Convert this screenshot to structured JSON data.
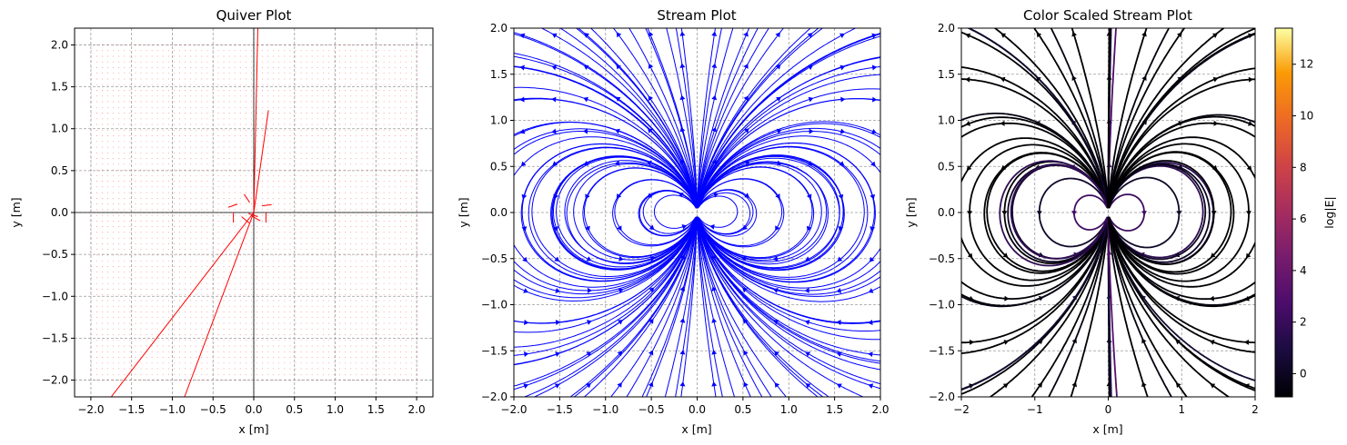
{
  "chart_data": [
    {
      "type": "quiver",
      "title": "Quiver Plot",
      "xlabel": "x [m]",
      "ylabel": "y [m]",
      "xlim": [
        -2.2,
        2.2
      ],
      "ylim": [
        -2.2,
        2.2
      ],
      "xticks": [
        -2.0,
        -1.5,
        -1.0,
        -0.5,
        0.0,
        0.5,
        1.0,
        1.5,
        2.0
      ],
      "yticks": [
        -2.0,
        -1.5,
        -1.0,
        -0.5,
        0.0,
        0.5,
        1.0,
        1.5,
        2.0
      ],
      "xtick_labels": [
        "−2.0",
        "−1.5",
        "−1.0",
        "−0.5",
        "0.0",
        "0.5",
        "1.0",
        "1.5",
        "2.0"
      ],
      "ytick_labels": [
        "−2.0",
        "−1.5",
        "−1.0",
        "−0.5",
        "0.0",
        "0.5",
        "1.0",
        "1.5",
        "2.0"
      ],
      "grid": true,
      "arrow_color": "#ff0000",
      "arrow_grid_range": [
        -2.0,
        2.0
      ],
      "visible_large_arrows": [
        {
          "x0": 0.0,
          "y0": 0.0,
          "x1": 0.05,
          "y1": 2.2
        },
        {
          "x0": 0.0,
          "y0": 0.0,
          "x1": 0.18,
          "y1": 1.22
        },
        {
          "x0": 0.0,
          "y0": 0.0,
          "x1": -1.75,
          "y1": -2.2
        },
        {
          "x0": 0.0,
          "y0": 0.0,
          "x1": -0.85,
          "y1": -2.2
        }
      ]
    },
    {
      "type": "streamplot",
      "title": "Stream Plot",
      "xlabel": "x [m]",
      "ylabel": "y [m]",
      "xlim": [
        -2,
        2
      ],
      "ylim": [
        -2,
        2
      ],
      "xticks": [
        -2.0,
        -1.5,
        -1.0,
        -0.5,
        0.0,
        0.5,
        1.0,
        1.5,
        2.0
      ],
      "yticks": [
        -2.0,
        -1.5,
        -1.0,
        -0.5,
        0.0,
        0.5,
        1.0,
        1.5,
        2.0
      ],
      "xtick_labels": [
        "−2.0",
        "−1.5",
        "−1.0",
        "−0.5",
        "0.0",
        "0.5",
        "1.0",
        "1.5",
        "2.0"
      ],
      "ytick_labels": [
        "−2.0",
        "−1.5",
        "−1.0",
        "−0.5",
        "0.0",
        "0.5",
        "1.0",
        "1.5",
        "2.0"
      ],
      "grid": true,
      "line_color": "#0000ff",
      "field": "dipole",
      "dipole_moment_direction": "+y"
    },
    {
      "type": "streamplot",
      "title": "Color Scaled Stream Plot",
      "xlabel": "x [m]",
      "ylabel": "y [m]",
      "xlim": [
        -2,
        2
      ],
      "ylim": [
        -2,
        2
      ],
      "xticks": [
        -2,
        -1,
        0,
        1,
        2
      ],
      "yticks": [
        -2.0,
        -1.5,
        -1.0,
        -0.5,
        0.0,
        0.5,
        1.0,
        1.5,
        2.0
      ],
      "xtick_labels": [
        "−2",
        "−1",
        "0",
        "1",
        "2"
      ],
      "ytick_labels": [
        "−2.0",
        "−1.5",
        "−1.0",
        "−0.5",
        "0.0",
        "0.5",
        "1.0",
        "1.5",
        "2.0"
      ],
      "grid": true,
      "colormap": "inferno",
      "colorbar": {
        "label": "log|E|",
        "range": [
          -0.9,
          13.4
        ],
        "ticks": [
          0,
          2,
          4,
          6,
          8,
          10,
          12
        ],
        "tick_labels": [
          "0",
          "2",
          "4",
          "6",
          "8",
          "10",
          "12"
        ]
      },
      "field": "dipole",
      "dipole_moment_direction": "+y"
    }
  ]
}
